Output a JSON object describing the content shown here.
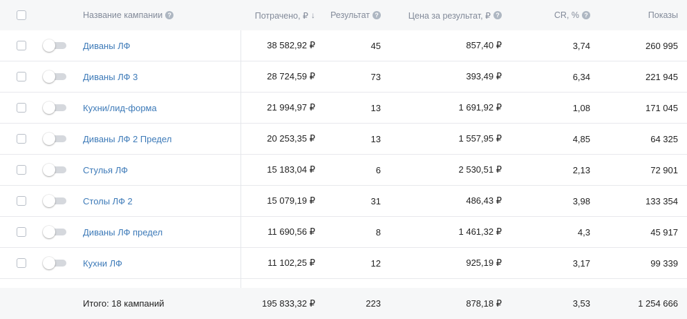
{
  "header": {
    "name": "Название кампании",
    "spent": "Потрачено, ₽",
    "sort_arrow": "↓",
    "result": "Результат",
    "price": "Цена за результат, ₽",
    "cr": "CR, %",
    "shows": "Показы",
    "help_glyph": "?"
  },
  "rows": [
    {
      "name": "Диваны ЛФ",
      "spent": "38 582,92 ₽",
      "result": "45",
      "price": "857,40 ₽",
      "cr": "3,74",
      "shows": "260 995"
    },
    {
      "name": "Диваны ЛФ 3",
      "spent": "28 724,59 ₽",
      "result": "73",
      "price": "393,49 ₽",
      "cr": "6,34",
      "shows": "221 945"
    },
    {
      "name": "Кухни/лид-форма",
      "spent": "21 994,97 ₽",
      "result": "13",
      "price": "1 691,92 ₽",
      "cr": "1,08",
      "shows": "171 045"
    },
    {
      "name": "Диваны ЛФ 2 Предел",
      "spent": "20 253,35 ₽",
      "result": "13",
      "price": "1 557,95 ₽",
      "cr": "4,85",
      "shows": "64 325"
    },
    {
      "name": "Стулья ЛФ",
      "spent": "15 183,04 ₽",
      "result": "6",
      "price": "2 530,51 ₽",
      "cr": "2,13",
      "shows": "72 901"
    },
    {
      "name": "Столы ЛФ 2",
      "spent": "15 079,19 ₽",
      "result": "31",
      "price": "486,43 ₽",
      "cr": "3,98",
      "shows": "133 354"
    },
    {
      "name": "Диваны ЛФ предел",
      "spent": "11 690,56 ₽",
      "result": "8",
      "price": "1 461,32 ₽",
      "cr": "4,3",
      "shows": "45 917"
    },
    {
      "name": "Кухни ЛФ",
      "spent": "11 102,25 ₽",
      "result": "12",
      "price": "925,19 ₽",
      "cr": "3,17",
      "shows": "99 339"
    }
  ],
  "footer": {
    "total_label": "Итого: 18 кампаний",
    "spent": "195 833,32 ₽",
    "result": "223",
    "price": "878,18 ₽",
    "cr": "3,53",
    "shows": "1 254 666"
  },
  "icons": {
    "checkbox": "checkbox-icon",
    "toggle": "toggle-switch",
    "help": "question-circle-icon",
    "sort": "sort-desc-icon"
  },
  "colors": {
    "link": "#3d7ab8",
    "header_bg": "#f6f7f8",
    "footer_bg": "#f6f7f8",
    "muted_text": "#828a99",
    "border": "#e7e8ec"
  }
}
